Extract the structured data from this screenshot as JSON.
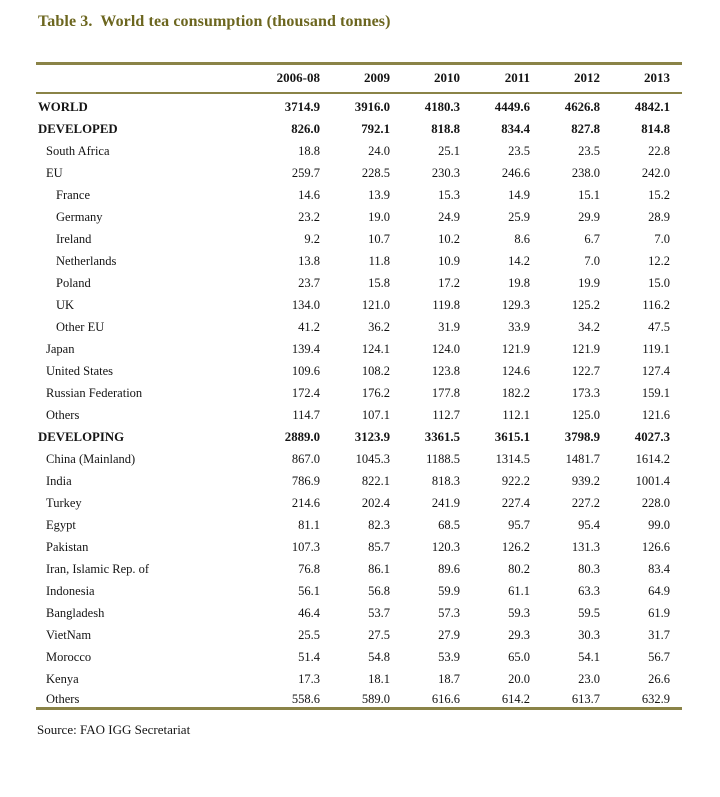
{
  "title": "Table 3.  World tea consumption (thousand tonnes)",
  "source_note": "Source: FAO IGG Secretariat",
  "colors": {
    "title_accent": "#6c661f",
    "rule": "#8a8347",
    "text": "#141414",
    "background": "#ffffff"
  },
  "chart_data": {
    "type": "table",
    "title": "Table 3. World tea consumption (thousand tonnes)",
    "unit": "thousand tonnes",
    "columns": [
      "2006-08",
      "2009",
      "2010",
      "2011",
      "2012",
      "2013"
    ],
    "rows": [
      {
        "label": "WORLD",
        "level": 0,
        "bold": true,
        "gap": false,
        "values": [
          "3714.9",
          "3916.0",
          "4180.3",
          "4449.6",
          "4626.8",
          "4842.1"
        ]
      },
      {
        "label": "DEVELOPED",
        "level": 0,
        "bold": true,
        "gap": true,
        "values": [
          "826.0",
          "792.1",
          "818.8",
          "834.4",
          "827.8",
          "814.8"
        ]
      },
      {
        "label": "South Africa",
        "level": 1,
        "bold": false,
        "gap": false,
        "values": [
          "18.8",
          "24.0",
          "25.1",
          "23.5",
          "23.5",
          "22.8"
        ]
      },
      {
        "label": "EU",
        "level": 1,
        "bold": false,
        "gap": false,
        "values": [
          "259.7",
          "228.5",
          "230.3",
          "246.6",
          "238.0",
          "242.0"
        ]
      },
      {
        "label": "France",
        "level": 2,
        "bold": false,
        "gap": false,
        "values": [
          "14.6",
          "13.9",
          "15.3",
          "14.9",
          "15.1",
          "15.2"
        ]
      },
      {
        "label": "Germany",
        "level": 2,
        "bold": false,
        "gap": false,
        "values": [
          "23.2",
          "19.0",
          "24.9",
          "25.9",
          "29.9",
          "28.9"
        ]
      },
      {
        "label": "Ireland",
        "level": 2,
        "bold": false,
        "gap": false,
        "values": [
          "9.2",
          "10.7",
          "10.2",
          "8.6",
          "6.7",
          "7.0"
        ]
      },
      {
        "label": "Netherlands",
        "level": 2,
        "bold": false,
        "gap": false,
        "values": [
          "13.8",
          "11.8",
          "10.9",
          "14.2",
          "7.0",
          "12.2"
        ]
      },
      {
        "label": "Poland",
        "level": 2,
        "bold": false,
        "gap": false,
        "values": [
          "23.7",
          "15.8",
          "17.2",
          "19.8",
          "19.9",
          "15.0"
        ]
      },
      {
        "label": "UK",
        "level": 2,
        "bold": false,
        "gap": false,
        "values": [
          "134.0",
          "121.0",
          "119.8",
          "129.3",
          "125.2",
          "116.2"
        ]
      },
      {
        "label": "Other EU",
        "level": 2,
        "bold": false,
        "gap": false,
        "values": [
          "41.2",
          "36.2",
          "31.9",
          "33.9",
          "34.2",
          "47.5"
        ]
      },
      {
        "label": "Japan",
        "level": 1,
        "bold": false,
        "gap": false,
        "values": [
          "139.4",
          "124.1",
          "124.0",
          "121.9",
          "121.9",
          "119.1"
        ]
      },
      {
        "label": "United States",
        "level": 1,
        "bold": false,
        "gap": false,
        "values": [
          "109.6",
          "108.2",
          "123.8",
          "124.6",
          "122.7",
          "127.4"
        ]
      },
      {
        "label": "Russian Federation",
        "level": 1,
        "bold": false,
        "gap": false,
        "values": [
          "172.4",
          "176.2",
          "177.8",
          "182.2",
          "173.3",
          "159.1"
        ]
      },
      {
        "label": "Others",
        "level": 1,
        "bold": false,
        "gap": false,
        "values": [
          "114.7",
          "107.1",
          "112.7",
          "112.1",
          "125.0",
          "121.6"
        ]
      },
      {
        "label": "DEVELOPING",
        "level": 0,
        "bold": true,
        "gap": true,
        "values": [
          "2889.0",
          "3123.9",
          "3361.5",
          "3615.1",
          "3798.9",
          "4027.3"
        ]
      },
      {
        "label": "China (Mainland)",
        "level": 1,
        "bold": false,
        "gap": false,
        "values": [
          "867.0",
          "1045.3",
          "1188.5",
          "1314.5",
          "1481.7",
          "1614.2"
        ]
      },
      {
        "label": "India",
        "level": 1,
        "bold": false,
        "gap": false,
        "values": [
          "786.9",
          "822.1",
          "818.3",
          "922.2",
          "939.2",
          "1001.4"
        ]
      },
      {
        "label": "Turkey",
        "level": 1,
        "bold": false,
        "gap": false,
        "values": [
          "214.6",
          "202.4",
          "241.9",
          "227.4",
          "227.2",
          "228.0"
        ]
      },
      {
        "label": "Egypt",
        "level": 1,
        "bold": false,
        "gap": false,
        "values": [
          "81.1",
          "82.3",
          "68.5",
          "95.7",
          "95.4",
          "99.0"
        ]
      },
      {
        "label": "Pakistan",
        "level": 1,
        "bold": false,
        "gap": false,
        "values": [
          "107.3",
          "85.7",
          "120.3",
          "126.2",
          "131.3",
          "126.6"
        ]
      },
      {
        "label": "Iran, Islamic Rep. of",
        "level": 1,
        "bold": false,
        "gap": false,
        "values": [
          "76.8",
          "86.1",
          "89.6",
          "80.2",
          "80.3",
          "83.4"
        ]
      },
      {
        "label": "Indonesia",
        "level": 1,
        "bold": false,
        "gap": false,
        "values": [
          "56.1",
          "56.8",
          "59.9",
          "61.1",
          "63.3",
          "64.9"
        ]
      },
      {
        "label": "Bangladesh",
        "level": 1,
        "bold": false,
        "gap": false,
        "values": [
          "46.4",
          "53.7",
          "57.3",
          "59.3",
          "59.5",
          "61.9"
        ]
      },
      {
        "label": "VietNam",
        "level": 1,
        "bold": false,
        "gap": false,
        "values": [
          "25.5",
          "27.5",
          "27.9",
          "29.3",
          "30.3",
          "31.7"
        ]
      },
      {
        "label": "Morocco",
        "level": 1,
        "bold": false,
        "gap": false,
        "values": [
          "51.4",
          "54.8",
          "53.9",
          "65.0",
          "54.1",
          "56.7"
        ]
      },
      {
        "label": "Kenya",
        "level": 1,
        "bold": false,
        "gap": false,
        "values": [
          "17.3",
          "18.1",
          "18.7",
          "20.0",
          "23.0",
          "26.6"
        ]
      },
      {
        "label": "Others",
        "level": 1,
        "bold": false,
        "gap": false,
        "values": [
          "558.6",
          "589.0",
          "616.6",
          "614.2",
          "613.7",
          "632.9"
        ]
      }
    ]
  }
}
